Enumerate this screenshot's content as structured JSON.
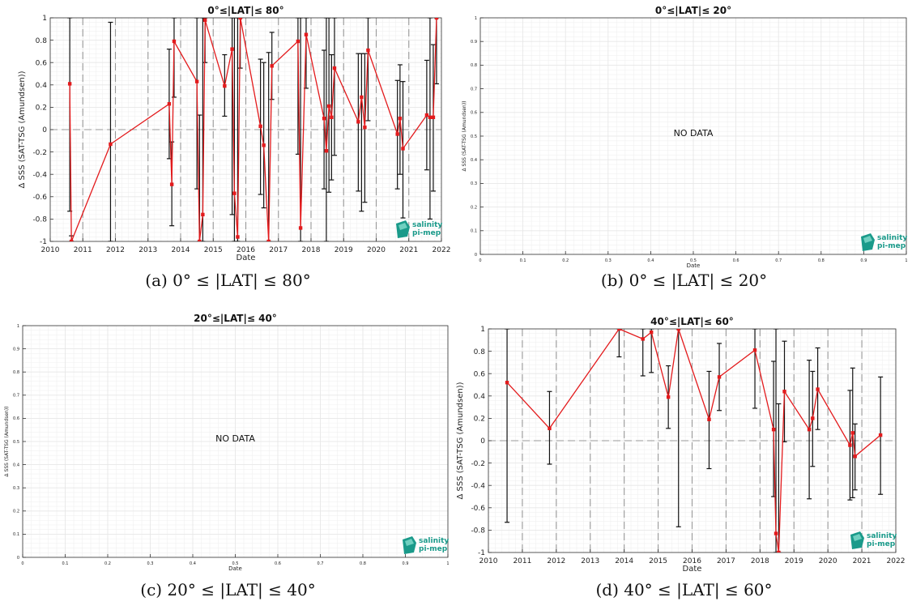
{
  "colors": {
    "series": "#e31a1c",
    "errorbar": "#111111",
    "grid": "#e6e6e6",
    "yearline": "#999999",
    "logo": "#1a9a8a"
  },
  "logo": {
    "line1": "salinity",
    "line2": "pi-mep",
    "icon": "salinity-logo-icon"
  },
  "captions": {
    "a": "(a) 0° ≤ |LAT| ≤ 80°",
    "b": "(b) 0° ≤ |LAT| ≤ 20°",
    "c": "(c) 20° ≤ |LAT| ≤ 40°",
    "d": "(d) 40° ≤ |LAT| ≤ 60°"
  },
  "chart_data": [
    {
      "id": "a",
      "type": "line",
      "title": "0°≤|LAT|≤ 80°",
      "xlabel": "Date",
      "ylabel": "Δ SSS (SAT-TSG (Amundsen))",
      "xlim": [
        2010,
        2022
      ],
      "ylim": [
        -1,
        1
      ],
      "xticks": [
        2010,
        2011,
        2012,
        2013,
        2014,
        2015,
        2016,
        2017,
        2018,
        2019,
        2020,
        2021,
        2022
      ],
      "yticks": [
        -1,
        -0.8,
        -0.6,
        -0.4,
        -0.2,
        0,
        0.2,
        0.4,
        0.6,
        0.8,
        1
      ],
      "ytick_labels": [
        "-1",
        "-0.8",
        "-0.6",
        "-0.4",
        "-0.2",
        "0",
        "0.2",
        "0.4",
        "0.6",
        "0.8",
        "1"
      ],
      "xtick_labels": [
        "2010",
        "2011",
        "2012",
        "2013",
        "2014",
        "2015",
        "2016",
        "2017",
        "2018",
        "2019",
        "2020",
        "2021",
        "2022"
      ],
      "year_lines": true,
      "zero_line": true,
      "points": [
        {
          "x": 2010.6,
          "y": 0.41,
          "lo": -0.73,
          "hi": 1.0
        },
        {
          "x": 2010.65,
          "y": -1.0,
          "lo": -1.0,
          "hi": -0.95
        },
        {
          "x": 2011.85,
          "y": -0.13,
          "lo": -1.0,
          "hi": 0.96
        },
        {
          "x": 2013.65,
          "y": 0.23,
          "lo": -0.26,
          "hi": 0.72
        },
        {
          "x": 2013.73,
          "y": -0.49,
          "lo": -0.86,
          "hi": -0.11
        },
        {
          "x": 2013.8,
          "y": 0.79,
          "lo": 0.29,
          "hi": 1.0
        },
        {
          "x": 2014.5,
          "y": 0.43,
          "lo": -0.53,
          "hi": 1.0
        },
        {
          "x": 2014.58,
          "y": -1.0,
          "lo": -1.0,
          "hi": 0.13
        },
        {
          "x": 2014.68,
          "y": -0.76,
          "lo": -1.0,
          "hi": 1.0
        },
        {
          "x": 2014.75,
          "y": 0.98,
          "lo": 0.6,
          "hi": 1.0
        },
        {
          "x": 2015.35,
          "y": 0.39,
          "lo": 0.12,
          "hi": 0.67
        },
        {
          "x": 2015.58,
          "y": 0.72,
          "lo": -0.76,
          "hi": 1.0
        },
        {
          "x": 2015.65,
          "y": -0.57,
          "lo": -1.0,
          "hi": 1.0
        },
        {
          "x": 2015.75,
          "y": -0.96,
          "lo": -1.0,
          "hi": 1.0
        },
        {
          "x": 2015.83,
          "y": 1.0,
          "lo": 0.55,
          "hi": 1.0
        },
        {
          "x": 2016.45,
          "y": 0.03,
          "lo": -0.58,
          "hi": 0.63
        },
        {
          "x": 2016.55,
          "y": -0.14,
          "lo": -0.7,
          "hi": 0.6
        },
        {
          "x": 2016.7,
          "y": -1.0,
          "lo": -1.0,
          "hi": 0.69
        },
        {
          "x": 2016.8,
          "y": 0.57,
          "lo": 0.27,
          "hi": 0.87
        },
        {
          "x": 2017.6,
          "y": 0.79,
          "lo": -0.22,
          "hi": 1.0
        },
        {
          "x": 2017.68,
          "y": -0.88,
          "lo": -1.0,
          "hi": 1.0
        },
        {
          "x": 2017.85,
          "y": 0.85,
          "lo": 0.37,
          "hi": 1.0
        },
        {
          "x": 2018.4,
          "y": 0.1,
          "lo": -0.53,
          "hi": 0.71
        },
        {
          "x": 2018.47,
          "y": -0.19,
          "lo": -1.0,
          "hi": 1.0
        },
        {
          "x": 2018.55,
          "y": 0.21,
          "lo": -0.56,
          "hi": 1.0
        },
        {
          "x": 2018.63,
          "y": 0.11,
          "lo": -0.45,
          "hi": 0.67
        },
        {
          "x": 2018.72,
          "y": 0.55,
          "lo": -0.23,
          "hi": 1.0
        },
        {
          "x": 2019.45,
          "y": 0.07,
          "lo": -0.55,
          "hi": 0.68
        },
        {
          "x": 2019.55,
          "y": 0.29,
          "lo": -0.73,
          "hi": 0.68
        },
        {
          "x": 2019.65,
          "y": 0.02,
          "lo": -0.65,
          "hi": 0.68
        },
        {
          "x": 2019.75,
          "y": 0.71,
          "lo": 0.08,
          "hi": 1.0
        },
        {
          "x": 2020.65,
          "y": -0.04,
          "lo": -0.53,
          "hi": 0.44
        },
        {
          "x": 2020.73,
          "y": 0.1,
          "lo": -0.4,
          "hi": 0.58
        },
        {
          "x": 2020.82,
          "y": -0.17,
          "lo": -0.79,
          "hi": 0.43
        },
        {
          "x": 2021.55,
          "y": 0.13,
          "lo": -0.36,
          "hi": 0.62
        },
        {
          "x": 2021.65,
          "y": 0.11,
          "lo": -0.8,
          "hi": 1.0
        },
        {
          "x": 2021.75,
          "y": 0.11,
          "lo": -0.55,
          "hi": 0.76
        },
        {
          "x": 2021.85,
          "y": 1.0,
          "lo": 0.41,
          "hi": 1.0
        }
      ]
    },
    {
      "id": "b",
      "type": "line",
      "title": "0°≤|LAT|≤ 20°",
      "xlabel": "Date",
      "ylabel": "Δ SSS (SAT-TSG (Amundsen))",
      "xlim": [
        0,
        1
      ],
      "ylim": [
        0,
        1
      ],
      "xticks": [
        0,
        0.1,
        0.2,
        0.3,
        0.4,
        0.5,
        0.6,
        0.7,
        0.8,
        0.9,
        1
      ],
      "yticks": [
        0,
        0.1,
        0.2,
        0.3,
        0.4,
        0.5,
        0.6,
        0.7,
        0.8,
        0.9,
        1
      ],
      "xtick_labels": [
        "0",
        "0.1",
        "0.2",
        "0.3",
        "0.4",
        "0.5",
        "0.6",
        "0.7",
        "0.8",
        "0.9",
        "1"
      ],
      "ytick_labels": [
        "0",
        "0.1",
        "0.2",
        "0.3",
        "0.4",
        "0.5",
        "0.6",
        "0.7",
        "0.8",
        "0.9",
        "1"
      ],
      "year_lines": false,
      "zero_line": false,
      "no_data_text": "NO DATA",
      "points": []
    },
    {
      "id": "c",
      "type": "line",
      "title": "20°≤|LAT|≤ 40°",
      "xlabel": "Date",
      "ylabel": "Δ SSS (SAT-TSG (Amundsen))",
      "xlim": [
        0,
        1
      ],
      "ylim": [
        0,
        1
      ],
      "xticks": [
        0,
        0.1,
        0.2,
        0.3,
        0.4,
        0.5,
        0.6,
        0.7,
        0.8,
        0.9,
        1
      ],
      "yticks": [
        0,
        0.1,
        0.2,
        0.3,
        0.4,
        0.5,
        0.6,
        0.7,
        0.8,
        0.9,
        1
      ],
      "xtick_labels": [
        "0",
        "0.1",
        "0.2",
        "0.3",
        "0.4",
        "0.5",
        "0.6",
        "0.7",
        "0.8",
        "0.9",
        "1"
      ],
      "ytick_labels": [
        "0",
        "0.1",
        "0.2",
        "0.3",
        "0.4",
        "0.5",
        "0.6",
        "0.7",
        "0.8",
        "0.9",
        "1"
      ],
      "year_lines": false,
      "zero_line": false,
      "no_data_text": "NO DATA",
      "points": []
    },
    {
      "id": "d",
      "type": "line",
      "title": "40°≤|LAT|≤ 60°",
      "xlabel": "Date",
      "ylabel": "Δ SSS (SAT-TSG (Amundsen))",
      "xlim": [
        2010,
        2022
      ],
      "ylim": [
        -1,
        1
      ],
      "xticks": [
        2010,
        2011,
        2012,
        2013,
        2014,
        2015,
        2016,
        2017,
        2018,
        2019,
        2020,
        2021,
        2022
      ],
      "yticks": [
        -1,
        -0.8,
        -0.6,
        -0.4,
        -0.2,
        0,
        0.2,
        0.4,
        0.6,
        0.8,
        1
      ],
      "xtick_labels": [
        "2010",
        "2011",
        "2012",
        "2013",
        "2014",
        "2015",
        "2016",
        "2017",
        "2018",
        "2019",
        "2020",
        "2021",
        "2022"
      ],
      "ytick_labels": [
        "-1",
        "-0.8",
        "-0.6",
        "-0.4",
        "-0.2",
        "0",
        "0.2",
        "0.4",
        "0.6",
        "0.8",
        "1"
      ],
      "year_lines": true,
      "zero_line": true,
      "points": [
        {
          "x": 2010.55,
          "y": 0.52,
          "lo": -0.73,
          "hi": 1.0
        },
        {
          "x": 2011.8,
          "y": 0.11,
          "lo": -0.21,
          "hi": 0.44
        },
        {
          "x": 2013.85,
          "y": 1.0,
          "lo": 0.75,
          "hi": 1.0
        },
        {
          "x": 2014.55,
          "y": 0.91,
          "lo": 0.58,
          "hi": 1.0
        },
        {
          "x": 2014.8,
          "y": 0.97,
          "lo": 0.61,
          "hi": 1.0
        },
        {
          "x": 2015.3,
          "y": 0.39,
          "lo": 0.11,
          "hi": 0.67
        },
        {
          "x": 2015.6,
          "y": 1.0,
          "lo": -0.77,
          "hi": 1.0
        },
        {
          "x": 2016.5,
          "y": 0.19,
          "lo": -0.25,
          "hi": 0.62
        },
        {
          "x": 2016.8,
          "y": 0.57,
          "lo": 0.27,
          "hi": 0.87
        },
        {
          "x": 2017.85,
          "y": 0.81,
          "lo": 0.29,
          "hi": 1.0
        },
        {
          "x": 2018.4,
          "y": 0.1,
          "lo": -0.5,
          "hi": 0.71
        },
        {
          "x": 2018.47,
          "y": -0.83,
          "lo": -1.0,
          "hi": 1.0
        },
        {
          "x": 2018.55,
          "y": -1.0,
          "lo": -1.0,
          "hi": 0.33
        },
        {
          "x": 2018.72,
          "y": 0.44,
          "lo": -0.01,
          "hi": 0.89
        },
        {
          "x": 2019.45,
          "y": 0.1,
          "lo": -0.52,
          "hi": 0.72
        },
        {
          "x": 2019.55,
          "y": 0.2,
          "lo": -0.23,
          "hi": 0.62
        },
        {
          "x": 2019.7,
          "y": 0.46,
          "lo": 0.1,
          "hi": 0.83
        },
        {
          "x": 2020.65,
          "y": -0.04,
          "lo": -0.53,
          "hi": 0.45
        },
        {
          "x": 2020.73,
          "y": 0.07,
          "lo": -0.51,
          "hi": 0.65
        },
        {
          "x": 2020.8,
          "y": -0.14,
          "lo": -0.44,
          "hi": 0.15
        },
        {
          "x": 2021.55,
          "y": 0.05,
          "lo": -0.48,
          "hi": 0.57
        }
      ]
    }
  ]
}
